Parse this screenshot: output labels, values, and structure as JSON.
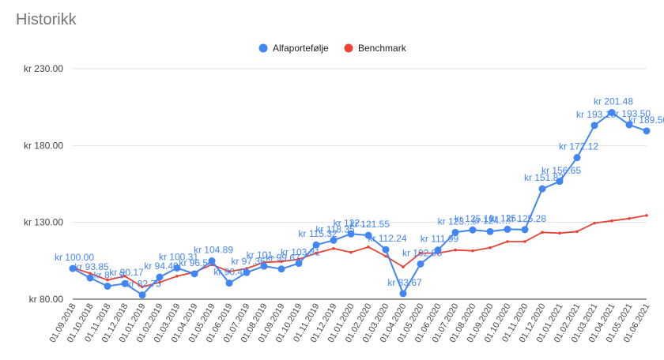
{
  "chart_data": {
    "type": "line",
    "title": "Historikk",
    "xlabel": "",
    "ylabel": "",
    "ylim": [
      80,
      230
    ],
    "y_ticks": [
      "kr 80.00",
      "kr 130.00",
      "kr 180.00",
      "kr 230.00"
    ],
    "y_tick_values": [
      80,
      130,
      180,
      230
    ],
    "grid": true,
    "legend_position": "top",
    "categories": [
      "01.09.2018",
      "01.10.2018",
      "01.11.2018",
      "01.12.2018",
      "01.01.2019",
      "01.02.2019",
      "01.03.2019",
      "01.04.2019",
      "01.05.2019",
      "01.06.2019",
      "01.07.2019",
      "01.08.2019",
      "01.09.2019",
      "01.10.2019",
      "01.11.2019",
      "01.12.2019",
      "01.01.2020",
      "01.02.2020",
      "01.03.2020",
      "01.04.2020",
      "01.05.2020",
      "01.06.2020",
      "01.07.2020",
      "01.08.2020",
      "01.09.2020",
      "01.10.2020",
      "01.11.2020",
      "01.12.2020",
      "01.01.2021",
      "01.02.2021",
      "01.03.2021",
      "01.04.2021",
      "01.05.2021",
      "01.06.2021"
    ],
    "series": [
      {
        "name": "Alfaportefølje",
        "color": "#4285f4",
        "values": [
          100.0,
          93.85,
          88.5,
          90.17,
          82.75,
          94.4,
          100.31,
          96.53,
          104.89,
          90.45,
          97.36,
          101.5,
          99.67,
          103.31,
          115.32,
          118.35,
          122.5,
          121.55,
          112.24,
          83.67,
          102.95,
          111.99,
          123.5,
          125.1,
          124.0,
          125.5,
          125.28,
          151.83,
          156.65,
          172.12,
          193.1,
          201.48,
          193.5,
          189.5
        ],
        "data_labels": [
          "kr 100.00",
          "kr 93.85",
          "kr 8…9",
          "kr 90.17",
          "kr 82.75",
          "kr 94.40",
          "kr 100.31",
          "kr 96.53",
          "kr 104.89",
          "kr 90.45",
          "kr 97.36",
          "kr 101.…",
          "kr 99.67",
          "kr 103.31",
          "kr 115.32",
          "kr 118.35",
          "kr 122.…",
          "kr 121.55",
          "kr 112.24",
          "kr 83.67",
          "kr 102.95",
          "kr 111.99",
          "kr 123.…",
          "kr 125.10",
          "kr 124.…",
          "kr 125.…",
          "kr 125.28",
          "kr 151.83",
          "kr 156.65",
          "kr 172.12",
          "kr 193.10",
          "kr 201.48",
          "kr 193.50",
          "kr 189.50"
        ]
      },
      {
        "name": "Benchmark",
        "color": "#ea4335",
        "values": [
          100.5,
          96.8,
          92.5,
          95.0,
          88.0,
          91.0,
          95.0,
          97.5,
          102.5,
          98.0,
          100.0,
          104.0,
          104.5,
          106.0,
          110.0,
          113.0,
          110.5,
          114.0,
          108.0,
          101.0,
          110.0,
          110.0,
          112.0,
          111.5,
          113.5,
          117.5,
          117.5,
          123.5,
          123.0,
          124.0,
          129.5,
          131.0,
          132.5,
          134.5
        ]
      }
    ]
  }
}
